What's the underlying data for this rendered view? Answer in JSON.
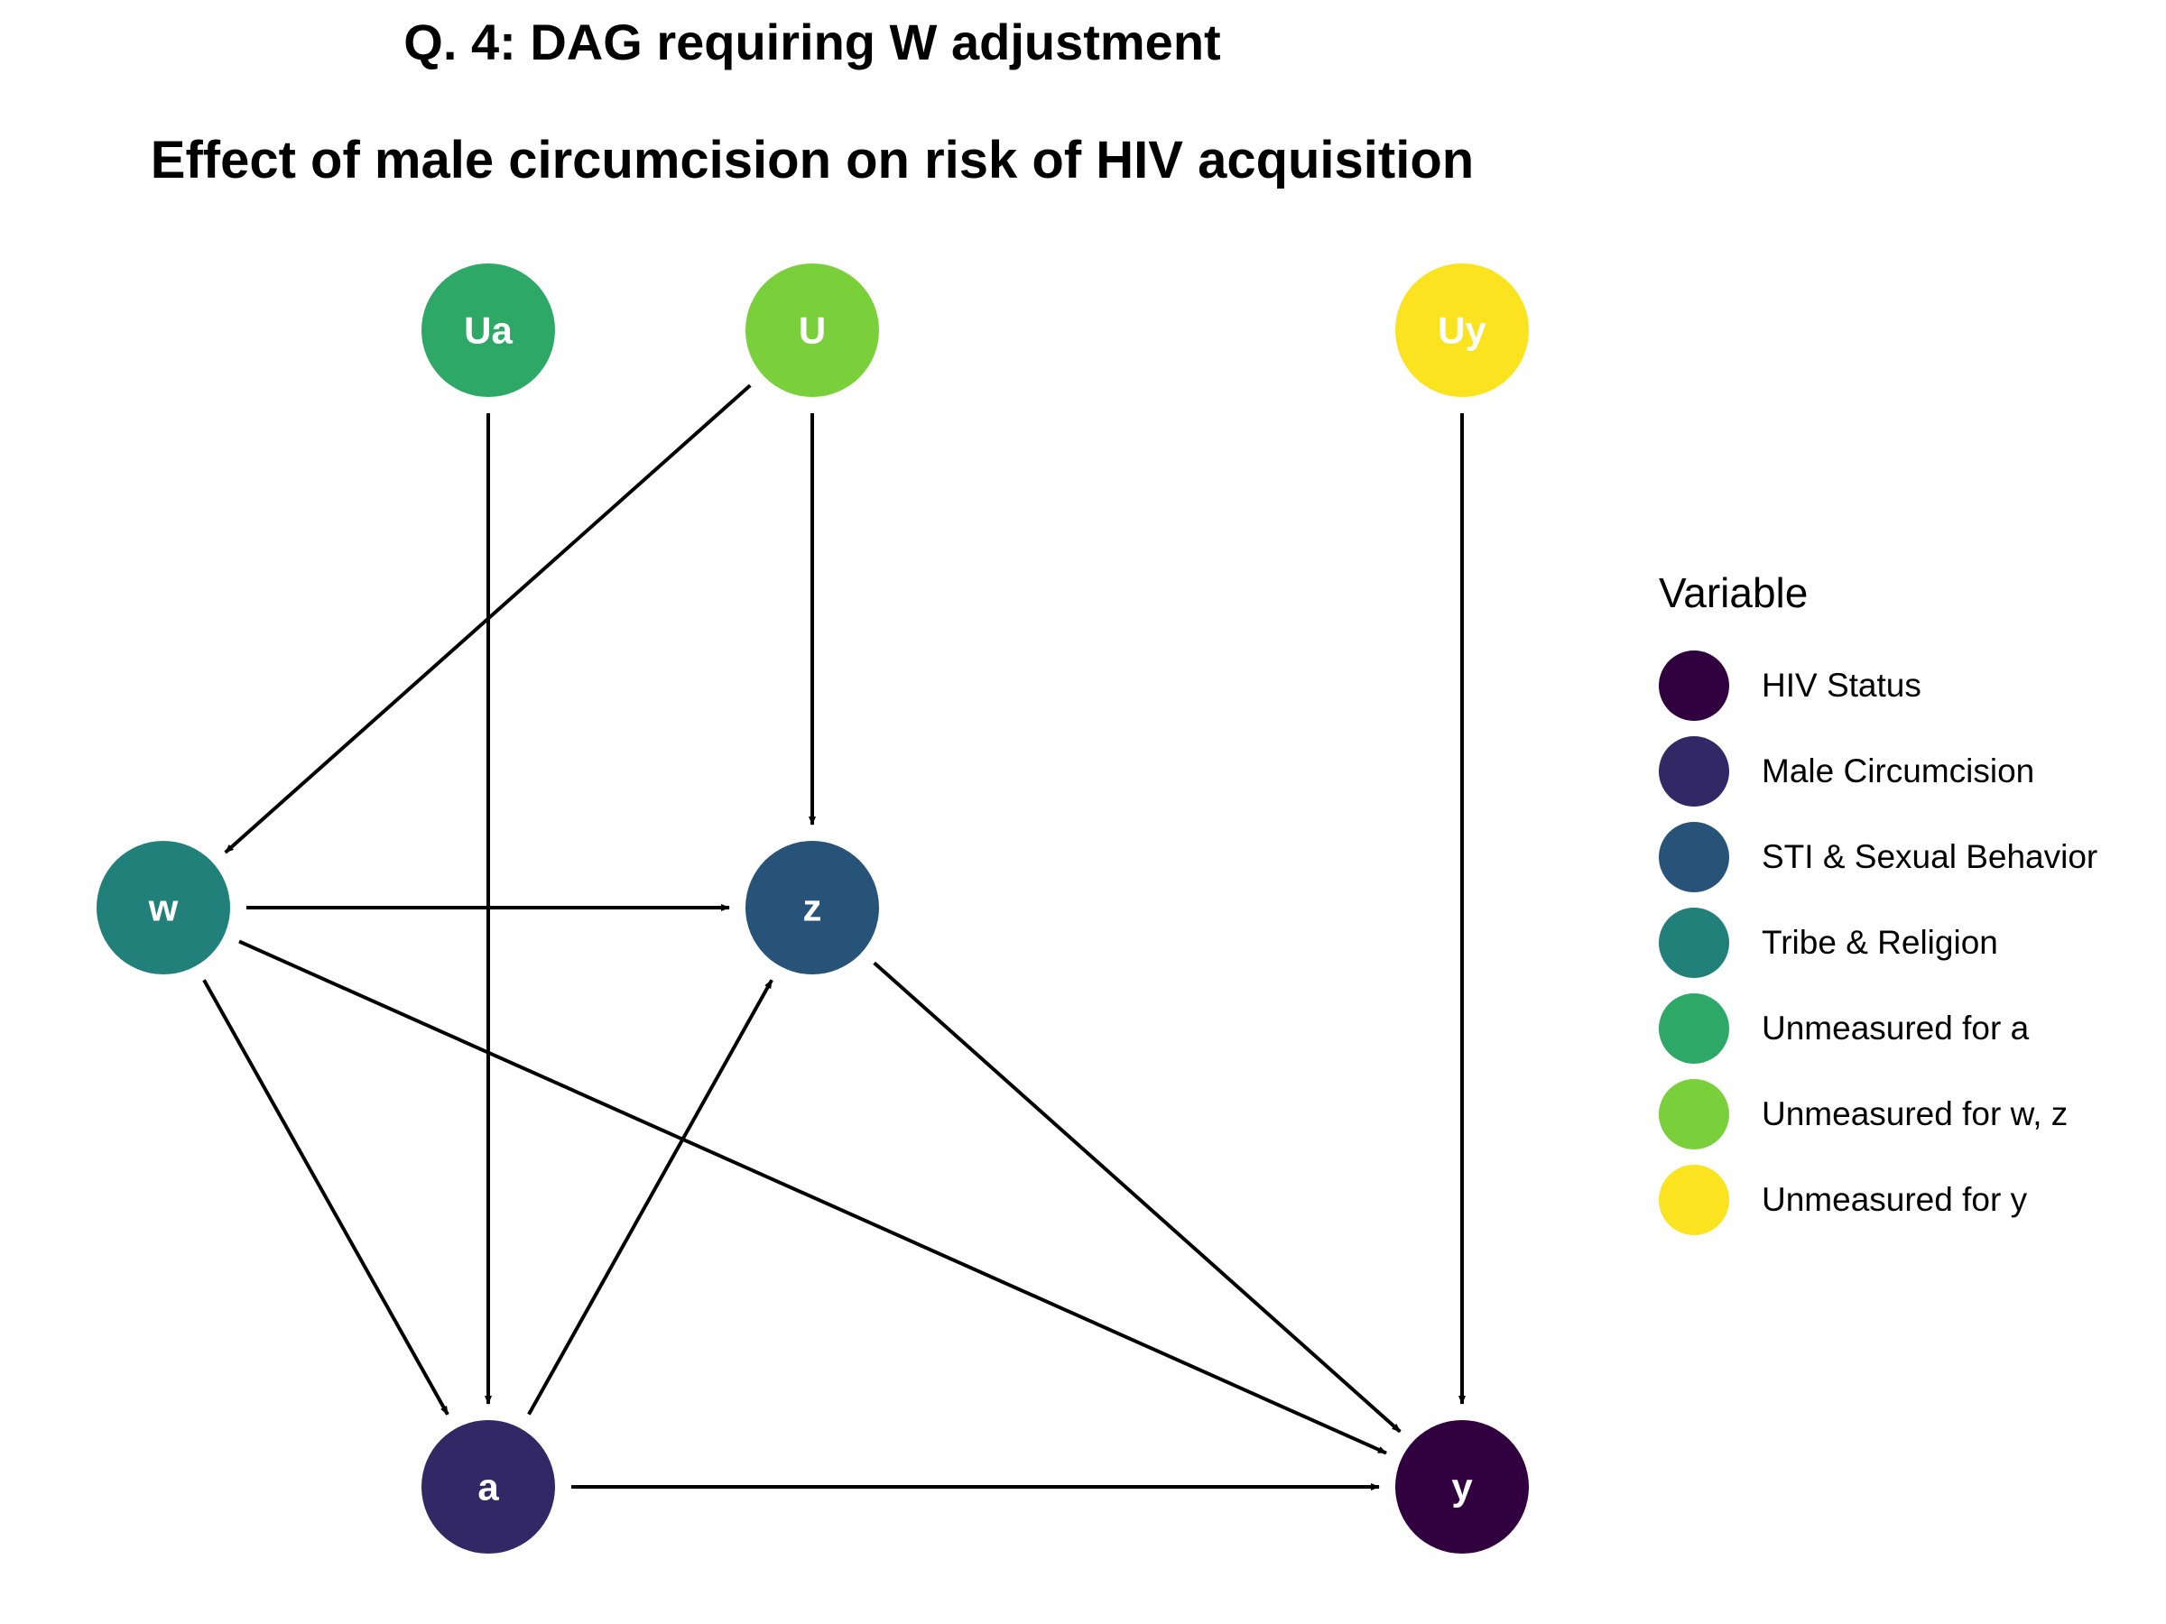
{
  "title": "Q. 4: DAG requiring W adjustment",
  "subtitle": "Effect of male circumcision on risk of HIV acquisition",
  "nodes": [
    {
      "id": "Ua",
      "label": "Ua",
      "color": "#2DA866"
    },
    {
      "id": "U",
      "label": "U",
      "color": "#7AD03A"
    },
    {
      "id": "Uy",
      "label": "Uy",
      "color": "#FBE31F"
    },
    {
      "id": "w",
      "label": "w",
      "color": "#22807A"
    },
    {
      "id": "z",
      "label": "z",
      "color": "#265377"
    },
    {
      "id": "a",
      "label": "a",
      "color": "#312865"
    },
    {
      "id": "y",
      "label": "y",
      "color": "#31003F"
    }
  ],
  "edges": [
    {
      "from": "U",
      "to": "w"
    },
    {
      "from": "U",
      "to": "z"
    },
    {
      "from": "Ua",
      "to": "a"
    },
    {
      "from": "Uy",
      "to": "y"
    },
    {
      "from": "w",
      "to": "z"
    },
    {
      "from": "w",
      "to": "a"
    },
    {
      "from": "w",
      "to": "y"
    },
    {
      "from": "a",
      "to": "z"
    },
    {
      "from": "a",
      "to": "y"
    },
    {
      "from": "z",
      "to": "y"
    }
  ],
  "legend": {
    "title": "Variable",
    "items": [
      {
        "label": "HIV Status",
        "color": "#31003F"
      },
      {
        "label": "Male Circumcision",
        "color": "#312865"
      },
      {
        "label": "STI & Sexual Behavior",
        "color": "#265377"
      },
      {
        "label": "Tribe & Religion",
        "color": "#22807A"
      },
      {
        "label": "Unmeasured for a",
        "color": "#2DA866"
      },
      {
        "label": "Unmeasured for w, z",
        "color": "#7AD03A"
      },
      {
        "label": "Unmeasured for y",
        "color": "#FBE31F"
      }
    ]
  }
}
